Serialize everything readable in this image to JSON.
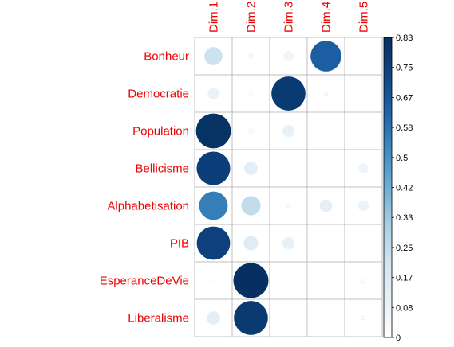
{
  "chart_data": {
    "type": "heatmap",
    "style": "circle",
    "rows": [
      "Bonheur",
      "Democratie",
      "Population",
      "Bellicisme",
      "Alphabetisation",
      "PIB",
      "EsperanceDeVie",
      "Liberalisme"
    ],
    "columns": [
      "Dim.1",
      "Dim.2",
      "Dim.3",
      "Dim.4",
      "Dim.5"
    ],
    "values": [
      [
        0.22,
        0.01,
        0.07,
        0.64,
        0.0
      ],
      [
        0.09,
        0.03,
        0.78,
        0.01,
        0.0
      ],
      [
        0.82,
        0.03,
        0.1,
        0.0,
        0.0
      ],
      [
        0.76,
        0.12,
        0.0,
        0.0,
        0.07
      ],
      [
        0.55,
        0.25,
        0.01,
        0.11,
        0.08
      ],
      [
        0.75,
        0.14,
        0.1,
        0.0,
        0.0
      ],
      [
        0.02,
        0.83,
        0.02,
        0.0,
        0.01
      ],
      [
        0.12,
        0.78,
        0.0,
        0.0,
        0.01
      ]
    ],
    "colorbar": {
      "range": [
        0,
        0.83
      ],
      "ticks": [
        "0",
        "0.08",
        "0.17",
        "0.25",
        "0.33",
        "0.42",
        "0.5",
        "0.58",
        "0.67",
        "0.75",
        "0.83"
      ],
      "colors": [
        "#ffffff",
        "#e7f0f7",
        "#d1e5f0",
        "#a9cfe3",
        "#6faed3",
        "#3d8bc0",
        "#1f63a8",
        "#0f4585",
        "#053061"
      ]
    },
    "grid": true,
    "colorbar_placement": "right"
  }
}
